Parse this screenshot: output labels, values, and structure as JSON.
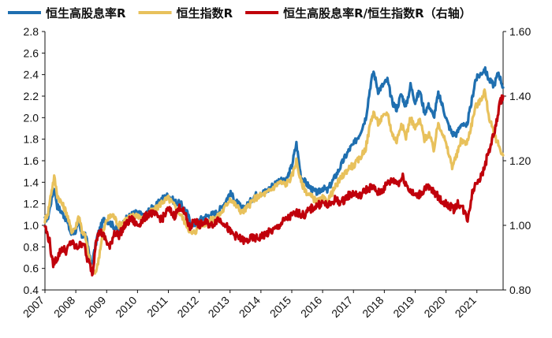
{
  "chart_data": {
    "type": "line",
    "legend_position": "top",
    "grid": false,
    "x_axis": {
      "categories": [
        "2007",
        "2008",
        "2009",
        "2010",
        "2011",
        "2012",
        "2013",
        "2014",
        "2015",
        "2016",
        "2017",
        "2018",
        "2019",
        "2020",
        "2021"
      ],
      "range": [
        2007,
        2021.85
      ]
    },
    "y_left": {
      "ticks": [
        "0.4",
        "0.6",
        "0.8",
        "1.0",
        "1.2",
        "1.4",
        "1.6",
        "1.8",
        "2.0",
        "2.2",
        "2.4",
        "2.6",
        "2.8"
      ],
      "range": [
        0.4,
        2.8
      ]
    },
    "y_right": {
      "ticks": [
        "0.80",
        "1.00",
        "1.20",
        "1.40",
        "1.60"
      ],
      "range": [
        0.8,
        1.6
      ]
    },
    "series": [
      {
        "name": "恒生高股息率R",
        "axis": "left",
        "color": "#1f6fb0",
        "points": [
          [
            2007.0,
            1.05
          ],
          [
            2007.1,
            1.08
          ],
          [
            2007.2,
            1.22
          ],
          [
            2007.3,
            1.35
          ],
          [
            2007.4,
            1.18
          ],
          [
            2007.55,
            1.12
          ],
          [
            2007.7,
            1.05
          ],
          [
            2007.85,
            0.92
          ],
          [
            2008.0,
            0.95
          ],
          [
            2008.1,
            1.02
          ],
          [
            2008.2,
            0.9
          ],
          [
            2008.3,
            0.92
          ],
          [
            2008.4,
            0.8
          ],
          [
            2008.5,
            0.62
          ],
          [
            2008.6,
            0.75
          ],
          [
            2008.7,
            0.9
          ],
          [
            2008.8,
            0.98
          ],
          [
            2008.9,
            1.05
          ],
          [
            2009.0,
            1.05
          ],
          [
            2009.2,
            1.0
          ],
          [
            2009.4,
            0.95
          ],
          [
            2009.6,
            1.05
          ],
          [
            2009.8,
            1.1
          ],
          [
            2010.0,
            1.12
          ],
          [
            2010.2,
            1.08
          ],
          [
            2010.4,
            1.15
          ],
          [
            2010.6,
            1.18
          ],
          [
            2010.8,
            1.25
          ],
          [
            2011.0,
            1.28
          ],
          [
            2011.2,
            1.22
          ],
          [
            2011.4,
            1.2
          ],
          [
            2011.6,
            1.12
          ],
          [
            2011.75,
            1.0
          ],
          [
            2011.9,
            1.02
          ],
          [
            2012.0,
            1.05
          ],
          [
            2012.2,
            1.08
          ],
          [
            2012.4,
            1.1
          ],
          [
            2012.6,
            1.12
          ],
          [
            2012.8,
            1.2
          ],
          [
            2013.0,
            1.3
          ],
          [
            2013.2,
            1.22
          ],
          [
            2013.4,
            1.15
          ],
          [
            2013.6,
            1.2
          ],
          [
            2013.8,
            1.28
          ],
          [
            2014.0,
            1.3
          ],
          [
            2014.2,
            1.32
          ],
          [
            2014.4,
            1.38
          ],
          [
            2014.6,
            1.42
          ],
          [
            2014.8,
            1.4
          ],
          [
            2015.0,
            1.55
          ],
          [
            2015.15,
            1.76
          ],
          [
            2015.3,
            1.45
          ],
          [
            2015.5,
            1.38
          ],
          [
            2015.7,
            1.32
          ],
          [
            2015.85,
            1.3
          ],
          [
            2016.0,
            1.35
          ],
          [
            2016.15,
            1.32
          ],
          [
            2016.3,
            1.4
          ],
          [
            2016.5,
            1.5
          ],
          [
            2016.7,
            1.62
          ],
          [
            2016.9,
            1.72
          ],
          [
            2017.0,
            1.75
          ],
          [
            2017.2,
            1.85
          ],
          [
            2017.4,
            2.0
          ],
          [
            2017.55,
            2.3
          ],
          [
            2017.65,
            2.43
          ],
          [
            2017.8,
            2.25
          ],
          [
            2017.95,
            2.3
          ],
          [
            2018.1,
            2.35
          ],
          [
            2018.25,
            2.15
          ],
          [
            2018.4,
            2.08
          ],
          [
            2018.55,
            2.22
          ],
          [
            2018.7,
            2.1
          ],
          [
            2018.85,
            2.3
          ],
          [
            2019.0,
            2.15
          ],
          [
            2019.15,
            2.25
          ],
          [
            2019.3,
            2.05
          ],
          [
            2019.45,
            2.12
          ],
          [
            2019.6,
            2.0
          ],
          [
            2019.75,
            2.22
          ],
          [
            2019.9,
            2.1
          ],
          [
            2020.05,
            1.95
          ],
          [
            2020.2,
            1.85
          ],
          [
            2020.35,
            1.85
          ],
          [
            2020.5,
            1.95
          ],
          [
            2020.65,
            1.9
          ],
          [
            2020.8,
            2.1
          ],
          [
            2020.95,
            2.35
          ],
          [
            2021.1,
            2.4
          ],
          [
            2021.25,
            2.45
          ],
          [
            2021.4,
            2.35
          ],
          [
            2021.55,
            2.3
          ],
          [
            2021.7,
            2.42
          ],
          [
            2021.85,
            2.28
          ]
        ]
      },
      {
        "name": "恒生指数R",
        "axis": "left",
        "color": "#e8c15c",
        "points": [
          [
            2007.0,
            1.05
          ],
          [
            2007.1,
            1.12
          ],
          [
            2007.2,
            1.3
          ],
          [
            2007.3,
            1.45
          ],
          [
            2007.4,
            1.28
          ],
          [
            2007.55,
            1.2
          ],
          [
            2007.7,
            1.12
          ],
          [
            2007.85,
            0.95
          ],
          [
            2008.0,
            0.98
          ],
          [
            2008.1,
            1.1
          ],
          [
            2008.2,
            0.95
          ],
          [
            2008.3,
            0.9
          ],
          [
            2008.4,
            0.75
          ],
          [
            2008.5,
            0.6
          ],
          [
            2008.6,
            0.55
          ],
          [
            2008.7,
            0.62
          ],
          [
            2008.8,
            0.8
          ],
          [
            2008.9,
            0.95
          ],
          [
            2009.0,
            1.05
          ],
          [
            2009.2,
            1.1
          ],
          [
            2009.4,
            1.0
          ],
          [
            2009.6,
            1.05
          ],
          [
            2009.8,
            1.08
          ],
          [
            2010.0,
            1.1
          ],
          [
            2010.2,
            1.05
          ],
          [
            2010.4,
            1.12
          ],
          [
            2010.6,
            1.15
          ],
          [
            2010.8,
            1.22
          ],
          [
            2011.0,
            1.25
          ],
          [
            2011.2,
            1.18
          ],
          [
            2011.4,
            1.1
          ],
          [
            2011.6,
            1.0
          ],
          [
            2011.75,
            0.92
          ],
          [
            2011.9,
            0.95
          ],
          [
            2012.0,
            1.0
          ],
          [
            2012.2,
            1.02
          ],
          [
            2012.4,
            1.05
          ],
          [
            2012.6,
            1.08
          ],
          [
            2012.8,
            1.15
          ],
          [
            2013.0,
            1.25
          ],
          [
            2013.2,
            1.18
          ],
          [
            2013.4,
            1.12
          ],
          [
            2013.6,
            1.18
          ],
          [
            2013.8,
            1.25
          ],
          [
            2014.0,
            1.28
          ],
          [
            2014.2,
            1.3
          ],
          [
            2014.4,
            1.35
          ],
          [
            2014.6,
            1.4
          ],
          [
            2014.8,
            1.38
          ],
          [
            2015.0,
            1.45
          ],
          [
            2015.15,
            1.6
          ],
          [
            2015.3,
            1.4
          ],
          [
            2015.5,
            1.3
          ],
          [
            2015.7,
            1.25
          ],
          [
            2015.85,
            1.22
          ],
          [
            2016.0,
            1.25
          ],
          [
            2016.15,
            1.22
          ],
          [
            2016.3,
            1.3
          ],
          [
            2016.5,
            1.4
          ],
          [
            2016.7,
            1.48
          ],
          [
            2016.9,
            1.55
          ],
          [
            2017.0,
            1.55
          ],
          [
            2017.2,
            1.62
          ],
          [
            2017.4,
            1.72
          ],
          [
            2017.55,
            1.95
          ],
          [
            2017.65,
            2.05
          ],
          [
            2017.8,
            1.95
          ],
          [
            2017.95,
            2.0
          ],
          [
            2018.1,
            2.05
          ],
          [
            2018.25,
            1.85
          ],
          [
            2018.4,
            1.78
          ],
          [
            2018.55,
            1.95
          ],
          [
            2018.7,
            1.82
          ],
          [
            2018.85,
            2.0
          ],
          [
            2019.0,
            1.9
          ],
          [
            2019.15,
            1.98
          ],
          [
            2019.3,
            1.8
          ],
          [
            2019.45,
            1.85
          ],
          [
            2019.6,
            1.7
          ],
          [
            2019.75,
            1.95
          ],
          [
            2019.9,
            1.85
          ],
          [
            2020.05,
            1.7
          ],
          [
            2020.2,
            1.55
          ],
          [
            2020.35,
            1.65
          ],
          [
            2020.5,
            1.8
          ],
          [
            2020.65,
            1.75
          ],
          [
            2020.8,
            1.9
          ],
          [
            2020.95,
            2.1
          ],
          [
            2021.1,
            2.15
          ],
          [
            2021.25,
            2.25
          ],
          [
            2021.4,
            2.0
          ],
          [
            2021.55,
            1.85
          ],
          [
            2021.7,
            1.75
          ],
          [
            2021.85,
            1.65
          ]
        ]
      },
      {
        "name": "恒生高股息率R/恒生指数R（右轴）",
        "axis": "right",
        "color": "#c0000b",
        "points": [
          [
            2007.0,
            1.0
          ],
          [
            2007.05,
            0.98
          ],
          [
            2007.15,
            0.95
          ],
          [
            2007.25,
            0.88
          ],
          [
            2007.4,
            0.9
          ],
          [
            2007.55,
            0.93
          ],
          [
            2007.7,
            0.92
          ],
          [
            2007.85,
            0.95
          ],
          [
            2008.0,
            0.93
          ],
          [
            2008.15,
            0.94
          ],
          [
            2008.25,
            0.95
          ],
          [
            2008.35,
            0.9
          ],
          [
            2008.45,
            0.88
          ],
          [
            2008.55,
            0.85
          ],
          [
            2008.65,
            0.96
          ],
          [
            2008.8,
            0.98
          ],
          [
            2008.95,
            0.96
          ],
          [
            2009.1,
            0.93
          ],
          [
            2009.25,
            0.98
          ],
          [
            2009.4,
            0.97
          ],
          [
            2009.6,
            1.0
          ],
          [
            2009.8,
            1.02
          ],
          [
            2010.0,
            1.0
          ],
          [
            2010.2,
            1.02
          ],
          [
            2010.4,
            1.04
          ],
          [
            2010.6,
            1.03
          ],
          [
            2010.8,
            1.02
          ],
          [
            2011.0,
            1.05
          ],
          [
            2011.2,
            1.03
          ],
          [
            2011.4,
            1.06
          ],
          [
            2011.55,
            1.03
          ],
          [
            2011.7,
            0.99
          ],
          [
            2011.85,
            1.02
          ],
          [
            2012.0,
            1.0
          ],
          [
            2012.2,
            1.01
          ],
          [
            2012.4,
            1.0
          ],
          [
            2012.6,
            1.02
          ],
          [
            2012.8,
            1.01
          ],
          [
            2013.0,
            0.98
          ],
          [
            2013.15,
            0.97
          ],
          [
            2013.3,
            0.96
          ],
          [
            2013.5,
            0.95
          ],
          [
            2013.7,
            0.96
          ],
          [
            2013.9,
            0.96
          ],
          [
            2014.1,
            0.97
          ],
          [
            2014.3,
            0.98
          ],
          [
            2014.5,
            0.99
          ],
          [
            2014.7,
            1.01
          ],
          [
            2014.85,
            1.02
          ],
          [
            2015.0,
            1.03
          ],
          [
            2015.2,
            1.04
          ],
          [
            2015.4,
            1.03
          ],
          [
            2015.6,
            1.05
          ],
          [
            2015.8,
            1.06
          ],
          [
            2016.0,
            1.07
          ],
          [
            2016.2,
            1.06
          ],
          [
            2016.4,
            1.08
          ],
          [
            2016.6,
            1.07
          ],
          [
            2016.8,
            1.09
          ],
          [
            2017.0,
            1.1
          ],
          [
            2017.2,
            1.09
          ],
          [
            2017.4,
            1.11
          ],
          [
            2017.6,
            1.12
          ],
          [
            2017.8,
            1.1
          ],
          [
            2017.95,
            1.11
          ],
          [
            2018.1,
            1.13
          ],
          [
            2018.3,
            1.14
          ],
          [
            2018.45,
            1.13
          ],
          [
            2018.6,
            1.15
          ],
          [
            2018.75,
            1.12
          ],
          [
            2018.9,
            1.1
          ],
          [
            2019.05,
            1.09
          ],
          [
            2019.2,
            1.1
          ],
          [
            2019.35,
            1.12
          ],
          [
            2019.5,
            1.11
          ],
          [
            2019.65,
            1.1
          ],
          [
            2019.8,
            1.08
          ],
          [
            2019.95,
            1.07
          ],
          [
            2020.1,
            1.06
          ],
          [
            2020.25,
            1.05
          ],
          [
            2020.4,
            1.07
          ],
          [
            2020.55,
            1.05
          ],
          [
            2020.7,
            1.02
          ],
          [
            2020.85,
            1.1
          ],
          [
            2021.0,
            1.14
          ],
          [
            2021.15,
            1.15
          ],
          [
            2021.3,
            1.2
          ],
          [
            2021.45,
            1.25
          ],
          [
            2021.6,
            1.3
          ],
          [
            2021.75,
            1.38
          ],
          [
            2021.85,
            1.4
          ]
        ]
      }
    ]
  }
}
